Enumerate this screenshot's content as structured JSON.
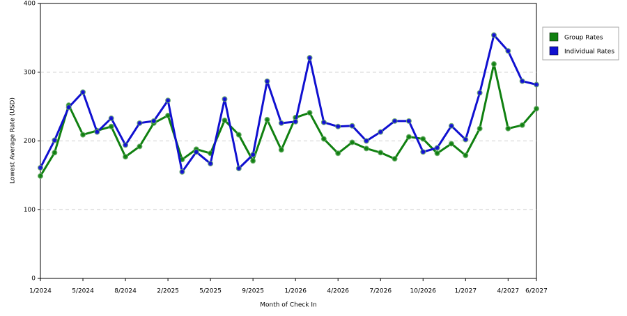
{
  "chart_data": {
    "type": "line",
    "x_label": "Month of Check In",
    "y_label": "Lowest Average Rate (USD)",
    "categories": [
      "1/2024",
      null,
      null,
      "5/2024",
      null,
      null,
      "8/2024",
      null,
      null,
      "2/2025",
      null,
      null,
      "5/2025",
      null,
      null,
      "9/2025",
      null,
      null,
      "1/2026",
      null,
      null,
      "4/2026",
      null,
      null,
      "7/2026",
      null,
      null,
      "10/2026",
      null,
      null,
      "1/2027",
      null,
      null,
      "4/2027",
      null,
      "6/2027"
    ],
    "series": [
      {
        "name": "Group Rates",
        "color": "#108010",
        "values": [
          149,
          183,
          252,
          209,
          215,
          221,
          177,
          192,
          226,
          237,
          173,
          188,
          182,
          230,
          209,
          171,
          231,
          187,
          234,
          241,
          203,
          182,
          198,
          189,
          183,
          174,
          206,
          203,
          182,
          196,
          179,
          218,
          312,
          218,
          223,
          247
        ]
      },
      {
        "name": "Individual Rates",
        "color": "#1010d0",
        "values": [
          161,
          201,
          249,
          271,
          213,
          233,
          194,
          226,
          229,
          259,
          155,
          184,
          167,
          261,
          160,
          180,
          287,
          226,
          228,
          321,
          227,
          221,
          222,
          200,
          213,
          229,
          229,
          184,
          190,
          222,
          202,
          270,
          354,
          331,
          287,
          282
        ]
      }
    ],
    "ylim": [
      0,
      400
    ],
    "yticks": [
      0,
      100,
      200,
      300,
      400
    ],
    "grid": true,
    "legend": "right"
  }
}
